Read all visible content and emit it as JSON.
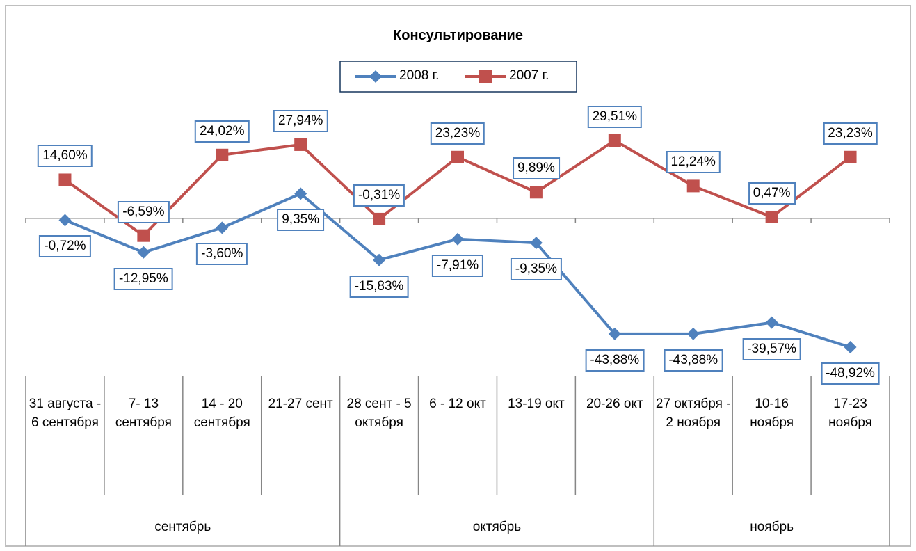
{
  "chart_data": {
    "type": "line",
    "title": "Консультирование",
    "category_groups": [
      {
        "name": "сентябрь",
        "categories": [
          "31 августа - 6 сентября",
          "7- 13 сентября",
          "14 - 20 сентября",
          "21-27 сент"
        ]
      },
      {
        "name": "октябрь",
        "categories": [
          "28 сент - 5 октября",
          "6 - 12 окт",
          "13-19 окт",
          "20-26 окт"
        ]
      },
      {
        "name": "ноябрь",
        "categories": [
          "27 октября - 2 ноября",
          "10-16 ноября",
          "17-23 ноября"
        ]
      }
    ],
    "series": [
      {
        "name": "2008 г.",
        "color": "#4f81bd",
        "marker": "diamond",
        "values": [
          -0.72,
          -12.95,
          -3.6,
          9.35,
          -15.83,
          -7.91,
          -9.35,
          -43.88,
          -43.88,
          -39.57,
          -48.92
        ],
        "value_labels": [
          "-0,72%",
          "-12,95%",
          "-3,60%",
          "9,35%",
          "-15,83%",
          "-7,91%",
          "-9,35%",
          "-43,88%",
          "-43,88%",
          "-39,57%",
          "-48,92%"
        ]
      },
      {
        "name": "2007 г.",
        "color": "#c0504d",
        "marker": "square",
        "values": [
          14.6,
          -6.59,
          24.02,
          27.94,
          -0.31,
          23.23,
          9.89,
          29.51,
          12.24,
          0.47,
          23.23
        ],
        "value_labels": [
          "14,60%",
          "-6,59%",
          "24,02%",
          "27,94%",
          "-0,31%",
          "23,23%",
          "9,89%",
          "29,51%",
          "12,24%",
          "0,47%",
          "23,23%"
        ]
      }
    ]
  }
}
